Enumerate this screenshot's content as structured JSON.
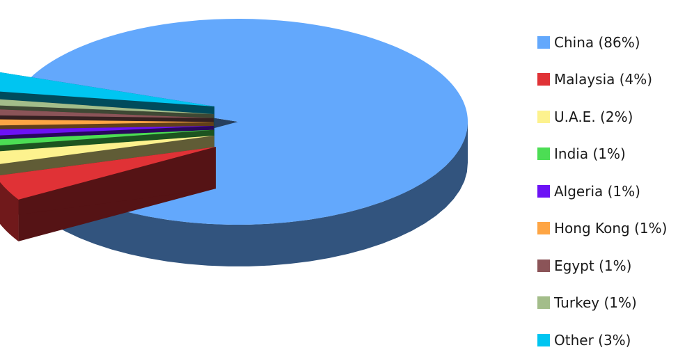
{
  "chart_data": {
    "type": "pie",
    "style": "3d-exploded",
    "title": "",
    "slices": [
      {
        "label": "China",
        "value": 86,
        "legend": "China (86%)",
        "color": "#63a8fc"
      },
      {
        "label": "Malaysia",
        "value": 4,
        "legend": "Malaysia (4%)",
        "color": "#e03236"
      },
      {
        "label": "U.A.E.",
        "value": 2,
        "legend": "U.A.E. (2%)",
        "color": "#fdf28e"
      },
      {
        "label": "India",
        "value": 1,
        "legend": "India (1%)",
        "color": "#4cdd54"
      },
      {
        "label": "Algeria",
        "value": 1,
        "legend": "Algeria (1%)",
        "color": "#6c12f5"
      },
      {
        "label": "Hong Kong",
        "value": 1,
        "legend": "Hong Kong (1%)",
        "color": "#fea544"
      },
      {
        "label": "Egypt",
        "value": 1,
        "legend": "Egypt (1%)",
        "color": "#8b5458"
      },
      {
        "label": "Turkey",
        "value": 1,
        "legend": "Turkey (1%)",
        "color": "#a3bd8a"
      },
      {
        "label": "Other",
        "value": 3,
        "legend": "Other (3%)",
        "color": "#00c5f1"
      }
    ],
    "legend_position": "right"
  }
}
